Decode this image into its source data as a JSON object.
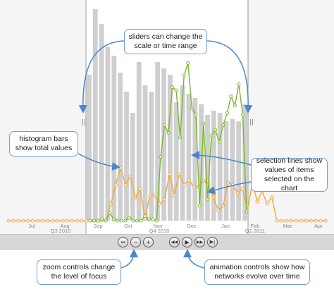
{
  "chart_data": {
    "type": "bar",
    "description_hidden": false,
    "histogram_bars": [
      {
        "value": 0.69
      },
      {
        "value": 1.0
      },
      {
        "value": 0.93
      },
      {
        "value": 0.82
      },
      {
        "value": 0.78
      },
      {
        "value": 0.7
      },
      {
        "value": 0.61
      },
      {
        "value": 0.51
      },
      {
        "value": 0.75
      },
      {
        "value": 0.64
      },
      {
        "value": 0.61
      },
      {
        "value": 0.75
      },
      {
        "value": 0.72
      },
      {
        "value": 0.69
      },
      {
        "value": 0.56
      },
      {
        "value": 0.64
      },
      {
        "value": 0.6
      },
      {
        "value": 0.58
      },
      {
        "value": 0.55
      },
      {
        "value": 0.5
      },
      {
        "value": 0.52
      },
      {
        "value": 0.51
      },
      {
        "value": 0.47
      },
      {
        "value": 0.48
      },
      {
        "value": 0.47
      },
      {
        "value": 0.55
      }
    ],
    "green_series": [
      0.0,
      0.0,
      0.0,
      0.01,
      0.0,
      0.05,
      0.01,
      0.0,
      0.0,
      0.0,
      0.02,
      0.0,
      0.0,
      0.0,
      0.03,
      0.01,
      0.01,
      0.0,
      0.42,
      0.63,
      0.58,
      0.88,
      0.86,
      0.55,
      0.96,
      1.04,
      0.74,
      0.7,
      0.1,
      0.64,
      0.14,
      0.56,
      0.6,
      0.52,
      0.63,
      0.71,
      0.82,
      0.76,
      0.9,
      0.7,
      0.06
    ],
    "orange_series": [
      0.0,
      0.0,
      0.0,
      0.0,
      0.0,
      0.0,
      0.0,
      0.0,
      0.0,
      0.0,
      0.0,
      0.0,
      0.0,
      0.0,
      0.0,
      0.0,
      0.0,
      0.0,
      0.0,
      0.0,
      0.0,
      0.08,
      0.17,
      0.25,
      0.17,
      0.21,
      0.11,
      0.15,
      0.01,
      0.12,
      0.12,
      0.08,
      0.1,
      0.22,
      0.12,
      0.22,
      0.17,
      0.19,
      0.16,
      0.16,
      0.19,
      0.17,
      0.11,
      0.05,
      0.07,
      0.18,
      0.17,
      0.13,
      0.15,
      0.05,
      0.18,
      0.09,
      0.14,
      0.08,
      0.11,
      0.0,
      0.0,
      0.0,
      0.0,
      0.0,
      0.0,
      0.0,
      0.0,
      0.0,
      0.0,
      0.0
    ],
    "month_labels": [
      "Jul",
      "Aug",
      "Sep",
      "Oct",
      "Nov",
      "Dec",
      "Jan",
      "Feb",
      "Mar",
      "Apr"
    ],
    "quarter_labels": [
      "Q3  2010",
      "Q4  2010",
      "Q1  2011"
    ],
    "selected_range": {
      "start": "Sep 2010",
      "end": "Jan 2011"
    }
  },
  "controls": {
    "zoom_in_symbol": "↔",
    "zoom_out_symbol": "−",
    "zoom_plus_symbol": "+",
    "rewind_symbol": "◀◀",
    "play_symbol": "▶",
    "forward_symbol": "▶▶",
    "end_symbol": "▶|"
  },
  "slider_handles": {
    "left": "||",
    "right": "||"
  },
  "callouts": {
    "sliders": [
      "sliders can change the",
      "scale or time range"
    ],
    "histogram": [
      "histogram bars",
      "show total values"
    ],
    "selection": [
      "selection lines show",
      "values of items",
      "selected on the chart"
    ],
    "zoom": [
      "zoom controls change",
      "the level of focus"
    ],
    "animation": [
      "animation controls show how",
      "networks evolve over time"
    ]
  },
  "colors": {
    "bar": "#cfcfcf",
    "green": "#7ab82e",
    "orange": "#f3a53a",
    "callout_border": "#6f9fd8",
    "dim_overlay": "#f0f0f0"
  }
}
